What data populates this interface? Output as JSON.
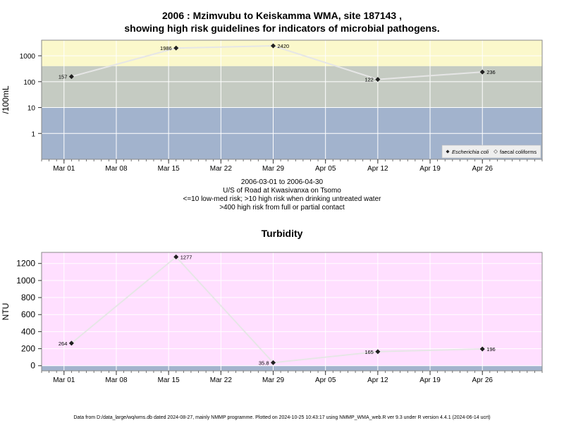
{
  "chart_data": [
    {
      "type": "line",
      "title_line1": "2006 : Mzimvubu to Keiskamma WMA, site 187143 ,",
      "title_line2": "showing high risk guidelines for indicators of microbial pathogens.",
      "ylabel": "/100mL",
      "yscale": "log",
      "ylim": [
        0.1,
        4000
      ],
      "xlim": [
        "2006-02-26",
        "2006-05-04"
      ],
      "x_ticks": [
        {
          "date": "2006-03-01",
          "label": "Mar 01"
        },
        {
          "date": "2006-03-08",
          "label": "Mar 08"
        },
        {
          "date": "2006-03-15",
          "label": "Mar 15"
        },
        {
          "date": "2006-03-22",
          "label": "Mar 22"
        },
        {
          "date": "2006-03-29",
          "label": "Mar 29"
        },
        {
          "date": "2006-04-05",
          "label": "Apr 05"
        },
        {
          "date": "2006-04-12",
          "label": "Apr 12"
        },
        {
          "date": "2006-04-19",
          "label": "Apr 19"
        },
        {
          "date": "2006-04-26",
          "label": "Apr 26"
        }
      ],
      "y_ticks": [
        {
          "value": 1,
          "label": "1"
        },
        {
          "value": 10,
          "label": "10"
        },
        {
          "value": 100,
          "label": "100"
        },
        {
          "value": 1000,
          "label": "1000"
        }
      ],
      "bands": [
        {
          "from": 0.1,
          "to": 10,
          "color": "#a2b3cd"
        },
        {
          "from": 10,
          "to": 400,
          "color": "#c5cbc2"
        },
        {
          "from": 400,
          "to": 4000,
          "color": "#fbf8cb"
        }
      ],
      "series": [
        {
          "name": "Escherichia coli",
          "x": [
            "2006-03-02",
            "2006-03-16",
            "2006-03-29",
            "2006-04-12",
            "2006-04-26"
          ],
          "values": [
            157,
            1986,
            2420,
            122,
            236
          ],
          "labels": [
            "157",
            "1986",
            "2420",
            "122",
            "236"
          ],
          "label_side": [
            "left",
            "left",
            "right",
            "left",
            "right"
          ]
        }
      ],
      "legend": {
        "placement": "bottom-right",
        "entries": [
          {
            "label": "Escherichia coli",
            "marker": "filled-diamond"
          },
          {
            "label": "faecal coliforms",
            "marker": "open-diamond"
          }
        ]
      },
      "subtitle_lines": [
        "2006-03-01 to 2006-04-30",
        "U/S of Road at Kwasivanxa on Tsomo",
        "<=10 low-med risk; >10 high risk when drinking untreated water",
        ">400 high risk from full or partial contact"
      ]
    },
    {
      "type": "line",
      "title": "Turbidity",
      "ylabel": "NTU",
      "ylim": [
        -60,
        1330
      ],
      "xlim": [
        "2006-02-26",
        "2006-05-04"
      ],
      "x_ticks": [
        {
          "date": "2006-03-01",
          "label": "Mar 01"
        },
        {
          "date": "2006-03-08",
          "label": "Mar 08"
        },
        {
          "date": "2006-03-15",
          "label": "Mar 15"
        },
        {
          "date": "2006-03-22",
          "label": "Mar 22"
        },
        {
          "date": "2006-03-29",
          "label": "Mar 29"
        },
        {
          "date": "2006-04-05",
          "label": "Apr 05"
        },
        {
          "date": "2006-04-12",
          "label": "Apr 12"
        },
        {
          "date": "2006-04-19",
          "label": "Apr 19"
        },
        {
          "date": "2006-04-26",
          "label": "Apr 26"
        }
      ],
      "y_ticks": [
        {
          "value": 0,
          "label": "0"
        },
        {
          "value": 200,
          "label": "200"
        },
        {
          "value": 400,
          "label": "400"
        },
        {
          "value": 600,
          "label": "600"
        },
        {
          "value": 800,
          "label": "800"
        },
        {
          "value": 1000,
          "label": "1000"
        },
        {
          "value": 1200,
          "label": "1200"
        }
      ],
      "bands": [
        {
          "from": -60,
          "to": 0,
          "color": "#a2b3cd"
        },
        {
          "from": 0,
          "to": 1330,
          "color": "#ffdfff"
        }
      ],
      "series": [
        {
          "name": "",
          "x": [
            "2006-03-02",
            "2006-03-16",
            "2006-03-29",
            "2006-04-12",
            "2006-04-26"
          ],
          "values": [
            264,
            1277,
            35.8,
            165,
            196
          ],
          "labels": [
            "264",
            "1277",
            "35.8",
            "165",
            "196"
          ],
          "label_side": [
            "left",
            "right",
            "left",
            "left",
            "right"
          ]
        }
      ]
    }
  ],
  "footer": "Data from D:/data_large/wq/wms.db dated 2024-08-27, mainly NMMP programme. Plotted on 2024-10-25 10:43:17 using NMMP_WMA_web.R ver 9.3 under R version 4.4.1 (2024-06-14 ucrt)"
}
